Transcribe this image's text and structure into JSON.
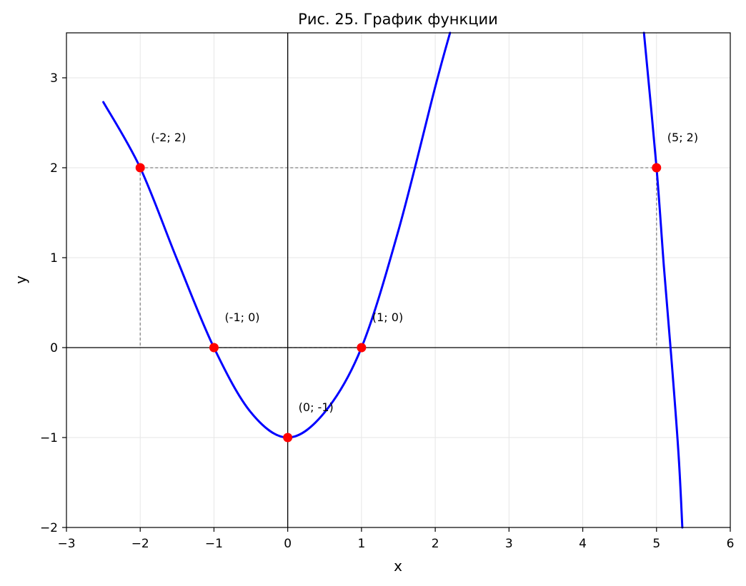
{
  "chart_data": {
    "type": "line",
    "title": "Рис. 25. График функции",
    "xlabel": "x",
    "ylabel": "y",
    "xlim": [
      -3,
      6
    ],
    "ylim": [
      -2,
      3.5
    ],
    "xticks": [
      -3,
      -2,
      -1,
      0,
      1,
      2,
      3,
      4,
      5,
      6
    ],
    "yticks": [
      -2,
      -1,
      0,
      1,
      2,
      3
    ],
    "xtick_labels": [
      "−3",
      "−2",
      "−1",
      "0",
      "1",
      "2",
      "3",
      "4",
      "5",
      "6"
    ],
    "ytick_labels": [
      "−2",
      "−1",
      "0",
      "1",
      "2",
      "3"
    ],
    "grid": true,
    "colors": {
      "curve": "#0000ff",
      "points": "#ff0000",
      "guides": "#808080",
      "axes": "#000000",
      "grid": "#e6e6e6"
    },
    "series": [
      {
        "x": [
          -2.5,
          -2,
          -1.5,
          -1,
          -0.5,
          0,
          0.5,
          1,
          1.5,
          2,
          2.2,
          4.83,
          5,
          5.1,
          5.2,
          5.3,
          5.35
        ],
        "y": [
          2.73,
          2,
          0.98,
          0,
          -0.72,
          -1,
          -0.72,
          0,
          1.3,
          2.9,
          3.5,
          3.5,
          2,
          0.9,
          -0.1,
          -1.2,
          -2
        ]
      }
    ],
    "points": [
      {
        "x": -2,
        "y": 2,
        "label": "(-2; 2)"
      },
      {
        "x": -1,
        "y": 0,
        "label": "(-1; 0)"
      },
      {
        "x": 0,
        "y": -1,
        "label": "(0; -1)"
      },
      {
        "x": 1,
        "y": 0,
        "label": "(1; 0)"
      },
      {
        "x": 5,
        "y": 2,
        "label": "(5; 2)"
      }
    ]
  }
}
